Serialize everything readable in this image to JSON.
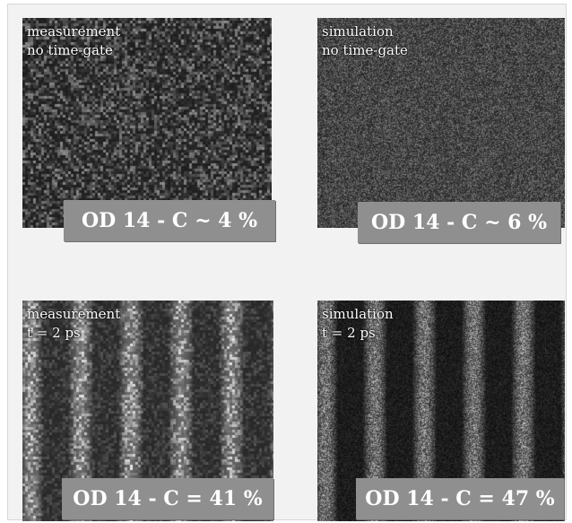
{
  "panels": [
    {
      "id": "measurement-no-gate",
      "caption": [
        "measurement",
        "no time-gate"
      ],
      "badge": "OD 14 - C ~ 4 %",
      "contrast_percent": 4,
      "pattern": "speckle",
      "stripes": false
    },
    {
      "id": "simulation-no-gate",
      "caption": [
        "simulation",
        "no time-gate"
      ],
      "badge": "OD 14 - C ~ 6 %",
      "contrast_percent": 6,
      "pattern": "fine-noise",
      "stripes": false
    },
    {
      "id": "measurement-gated",
      "caption": [
        "measurement",
        "t = 2 ps"
      ],
      "badge": "OD 14 - C = 41 %",
      "contrast_percent": 41,
      "pattern": "speckle",
      "stripes": true
    },
    {
      "id": "simulation-gated",
      "caption": [
        "simulation",
        "t = 2 ps"
      ],
      "badge": "OD 14 - C = 47 %",
      "contrast_percent": 47,
      "pattern": "fine-noise",
      "stripes": true
    }
  ],
  "colors": {
    "frame_bg": "#f2f2f2",
    "badge_bg": "#8f8f8f",
    "badge_text": "#ffffff",
    "caption_text": "#ffffff"
  }
}
